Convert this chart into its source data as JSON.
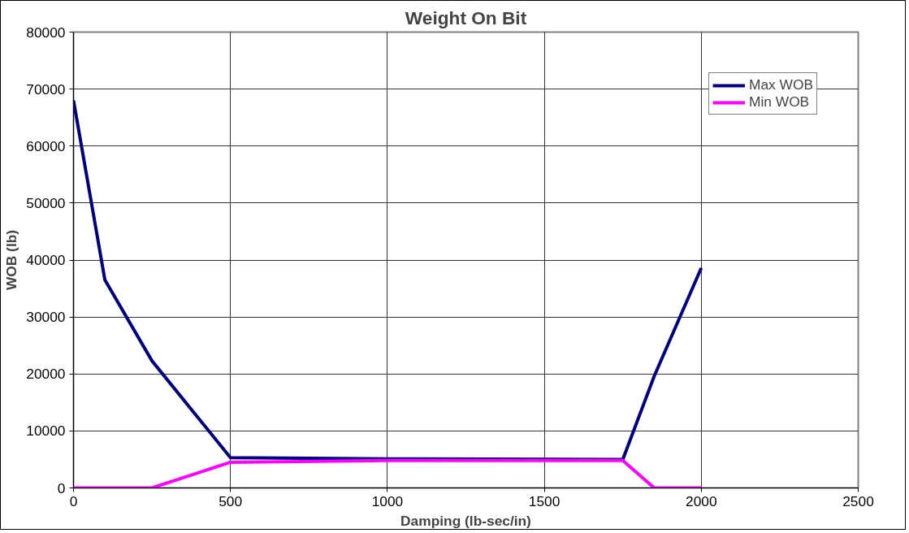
{
  "chart_data": {
    "type": "line",
    "title": "Weight On Bit",
    "xlabel": "Damping (lb-sec/in)",
    "ylabel": "WOB (lb)",
    "xlim": [
      0,
      2500
    ],
    "xticks": [
      0,
      500,
      1000,
      1500,
      2000,
      2500
    ],
    "ylim": [
      0,
      80000
    ],
    "yticks": [
      0,
      10000,
      20000,
      30000,
      40000,
      50000,
      60000,
      70000,
      80000
    ],
    "grid": true,
    "legend": "top right",
    "marker": "none",
    "line_style": "solid",
    "series": [
      {
        "name": "Max WOB",
        "color": "#000080",
        "x": [
          0,
          100,
          250,
          500,
          1000,
          1750,
          1850,
          2000
        ],
        "values": [
          68000,
          36500,
          22300,
          5300,
          5100,
          5000,
          19600,
          38600
        ]
      },
      {
        "name": "Min WOB",
        "color": "#ff00ff",
        "x": [
          0,
          100,
          250,
          500,
          1000,
          1750,
          1850,
          2000
        ],
        "values": [
          0,
          0,
          0,
          4500,
          4800,
          4800,
          0,
          0
        ]
      }
    ]
  }
}
